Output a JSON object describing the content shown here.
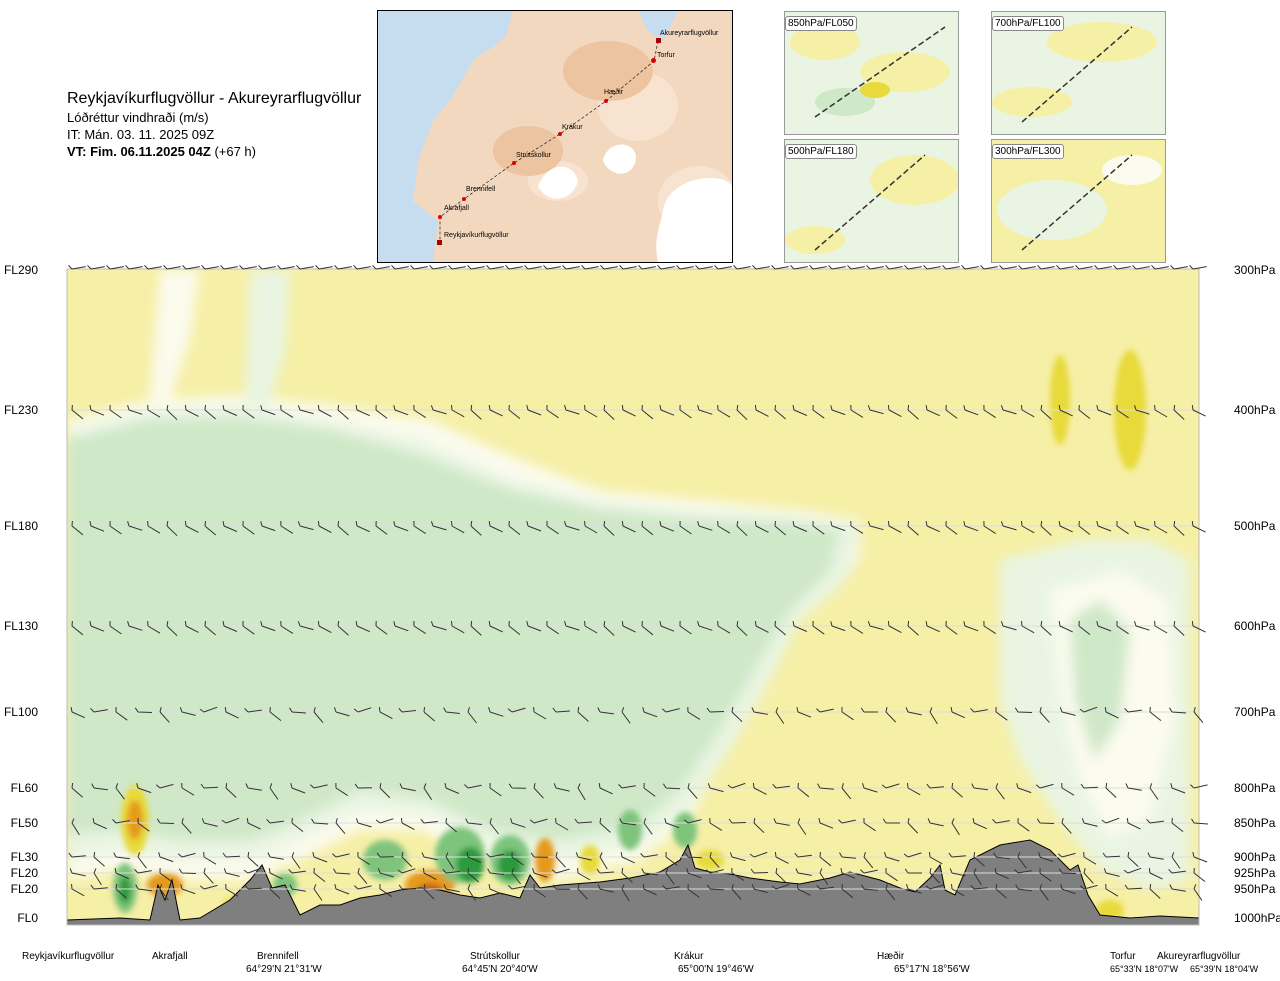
{
  "header": {
    "title": "Reykjavíkurflugvöllur - Akureyrarflugvöllur",
    "subtitle": "Lóðréttur vindhraði (m/s)",
    "issue_time": "IT: Mán. 03. 11. 2025 09Z",
    "valid_time_bold": "VT: Fim. 06.11.2025 04Z",
    "valid_time_offset": "(+67 h)"
  },
  "route_map": {
    "waypoints": [
      "Akureyrarflugvöllur",
      "Torfur",
      "Hæðir",
      "Krákur",
      "Strútskollur",
      "Brennifell",
      "Akrafjall",
      "Reykjavíkurflugvöllur"
    ]
  },
  "level_panels": [
    {
      "label": "850hPa/FL050"
    },
    {
      "label": "700hPa/FL100"
    },
    {
      "label": "500hPa/FL180"
    },
    {
      "label": "300hPa/FL300"
    }
  ],
  "chart_data": {
    "type": "heatmap",
    "title": "Lóðréttur vindhraði (m/s)",
    "y_levels_left": [
      "FL290",
      "FL230",
      "FL180",
      "FL130",
      "FL100",
      "FL60",
      "FL50",
      "FL30",
      "FL20",
      "FL20",
      "FL0"
    ],
    "y_levels_right": [
      "300hPa",
      "400hPa",
      "500hPa",
      "600hPa",
      "700hPa",
      "800hPa",
      "850hPa",
      "900hPa",
      "925hPa",
      "950hPa",
      "1000hPa"
    ],
    "x_locations": [
      {
        "name": "Reykjavíkurflugvöllur",
        "coord": ""
      },
      {
        "name": "Akrafjall",
        "coord": ""
      },
      {
        "name": "Brennifell",
        "coord": "64°29'N 21°31'W"
      },
      {
        "name": "Strútskollur",
        "coord": "64°45'N 20°40'W"
      },
      {
        "name": "Krákur",
        "coord": "65°00'N 19°46'W"
      },
      {
        "name": "Hæðir",
        "coord": "65°17'N 18°56'W"
      },
      {
        "name": "Torfur",
        "coord": "65°33'N 18°07'W"
      },
      {
        "name": "Akureyrarflugvöllur",
        "coord": "65°39'N 18°04'W"
      }
    ],
    "colors": {
      "sink_weak": "#f6efa6",
      "sink_mid": "#e8da3a",
      "sink_strong": "#e59a1f",
      "sink_max": "#c9561a",
      "near_zero": "#fbfbee",
      "rise_weak": "#e9f5e2",
      "rise_mid": "#cfe8c8",
      "rise_strong": "#7ec47c",
      "rise_max": "#2a9a3c",
      "terrain": "#7f7f7f"
    }
  }
}
